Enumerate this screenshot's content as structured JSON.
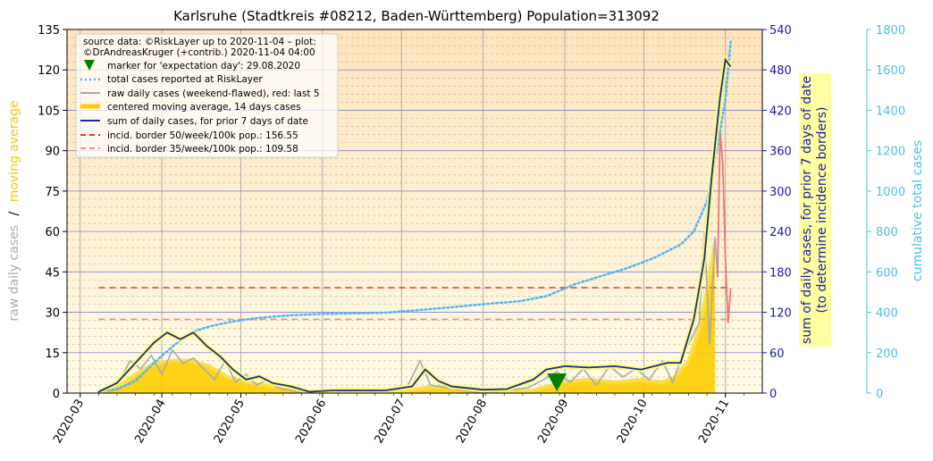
{
  "chart_data": {
    "type": "line",
    "title": "Karlsruhe (Stadtkreis #08212, Baden-Württemberg) Population=313092",
    "x_axis": {
      "type": "date",
      "range": [
        "2020-02-25",
        "2020-11-15"
      ],
      "tick_labels": [
        "2020-03",
        "2020-04",
        "2020-05",
        "2020-06",
        "2020-07",
        "2020-08",
        "2020-09",
        "2020-10",
        "2020-11"
      ],
      "ticks": [
        "2020-03-01",
        "2020-04-01",
        "2020-05-01",
        "2020-06-01",
        "2020-07-01",
        "2020-08-01",
        "2020-09-01",
        "2020-10-01",
        "2020-11-01"
      ]
    },
    "y_left": {
      "label_part1": "raw daily cases",
      "label_sep": "/",
      "label_part2": "moving average",
      "range": [
        0,
        135
      ],
      "tick_labels": [
        "0",
        "15",
        "30",
        "45",
        "60",
        "75",
        "90",
        "105",
        "120",
        "135"
      ]
    },
    "y_right1": {
      "label_line1": "sum of daily cases, for prior 7 days of date",
      "label_line2": "(to determine incidence borders)",
      "range": [
        0,
        540
      ],
      "tick_labels": [
        "0",
        "60",
        "120",
        "180",
        "240",
        "300",
        "360",
        "420",
        "480",
        "540"
      ]
    },
    "y_right2": {
      "label": "cumulative total cases",
      "range": [
        0,
        1800
      ],
      "tick_labels": [
        "0",
        "200",
        "400",
        "600",
        "800",
        "1000",
        "1200",
        "1400",
        "1600",
        "1800"
      ]
    },
    "legend": {
      "placement": "top-left",
      "source_line1": "source data: ©RiskLayer up to 2020-11-04 – plot:",
      "source_line2": "©DrAndreasKruger (+contrib.) 2020-11-04 04:00",
      "entries": [
        "marker for 'expectation day': 29.08.2020",
        "total cases reported at RiskLayer",
        "raw daily cases (weekend-flawed), red: last 5",
        "centered moving average, 14 days cases",
        "sum of daily cases, for prior 7 days of date",
        "incid. border 50/week/100k pop.: 156.55",
        "incid. border 35/week/100k pop.: 109.58"
      ]
    },
    "colors": {
      "raw": "#aaaaaa",
      "raw_last5": "#ee7777",
      "avg_fill": "#ffcc00",
      "avg_line": "#f8e04a",
      "sum7": "#1a2aa0",
      "total": "#4db8f0",
      "incid50": "#e03c2c",
      "incid35": "#f28c96",
      "marker": "#008000",
      "right1_axis": "#1a1aaa",
      "right2_axis": "#4dbcf0",
      "left_label_raw": "#aaaaaa",
      "left_label_avg": "#f2c800"
    },
    "expectation_day": "2020-08-29",
    "incidence_borders": {
      "incid50": 156.55,
      "incid35": 109.58
    },
    "series": {
      "total_cases": {
        "dates": [
          "2020-03-08",
          "2020-03-15",
          "2020-03-22",
          "2020-03-29",
          "2020-04-05",
          "2020-04-12",
          "2020-04-19",
          "2020-04-26",
          "2020-05-03",
          "2020-05-10",
          "2020-05-20",
          "2020-06-01",
          "2020-06-15",
          "2020-06-25",
          "2020-07-05",
          "2020-07-20",
          "2020-08-01",
          "2020-08-15",
          "2020-08-25",
          "2020-09-05",
          "2020-09-15",
          "2020-09-25",
          "2020-10-05",
          "2020-10-15",
          "2020-10-20",
          "2020-10-25",
          "2020-10-28",
          "2020-11-01",
          "2020-11-03"
        ],
        "values": [
          5,
          20,
          60,
          150,
          230,
          300,
          330,
          350,
          365,
          375,
          385,
          392,
          395,
          398,
          408,
          425,
          440,
          455,
          480,
          540,
          580,
          620,
          670,
          735,
          800,
          950,
          1150,
          1450,
          1740
        ]
      },
      "moving_average": {
        "dates": [
          "2020-03-08",
          "2020-03-15",
          "2020-03-22",
          "2020-03-29",
          "2020-04-05",
          "2020-04-12",
          "2020-04-19",
          "2020-04-26",
          "2020-05-03",
          "2020-05-10",
          "2020-05-17",
          "2020-05-24",
          "2020-05-31",
          "2020-06-10",
          "2020-06-20",
          "2020-06-30",
          "2020-07-10",
          "2020-07-20",
          "2020-07-31",
          "2020-08-10",
          "2020-08-20",
          "2020-08-31",
          "2020-09-10",
          "2020-09-20",
          "2020-09-30",
          "2020-10-08",
          "2020-10-13",
          "2020-10-18",
          "2020-10-22",
          "2020-10-25",
          "2020-10-28"
        ],
        "values": [
          0.5,
          2,
          7,
          11,
          12,
          12,
          10,
          6,
          4,
          3,
          2,
          1,
          0.3,
          0.3,
          0.3,
          0.5,
          2,
          2.5,
          1,
          0.5,
          1,
          4,
          5,
          4,
          5,
          4,
          6,
          12,
          24,
          38,
          56
        ]
      },
      "raw_daily": {
        "dates": [
          "2020-03-08",
          "2020-03-12",
          "2020-03-16",
          "2020-03-20",
          "2020-03-24",
          "2020-03-28",
          "2020-04-01",
          "2020-04-05",
          "2020-04-09",
          "2020-04-13",
          "2020-04-17",
          "2020-04-21",
          "2020-04-25",
          "2020-04-29",
          "2020-05-03",
          "2020-05-07",
          "2020-05-11",
          "2020-05-15",
          "2020-05-20",
          "2020-05-27",
          "2020-06-05",
          "2020-06-15",
          "2020-06-25",
          "2020-07-03",
          "2020-07-08",
          "2020-07-12",
          "2020-07-18",
          "2020-07-25",
          "2020-08-02",
          "2020-08-10",
          "2020-08-18",
          "2020-08-24",
          "2020-08-29",
          "2020-09-03",
          "2020-09-08",
          "2020-09-13",
          "2020-09-18",
          "2020-09-23",
          "2020-09-28",
          "2020-10-03",
          "2020-10-08",
          "2020-10-12",
          "2020-10-16",
          "2020-10-19",
          "2020-10-22",
          "2020-10-24",
          "2020-10-26",
          "2020-10-28",
          "2020-10-29"
        ],
        "values": [
          0,
          2,
          5,
          12,
          9,
          14,
          7,
          16,
          11,
          13,
          9,
          5,
          12,
          4,
          7,
          3,
          5,
          2,
          1,
          0,
          0,
          1,
          0,
          2,
          12,
          3,
          2,
          1,
          0,
          1,
          2,
          5,
          8,
          4,
          9,
          3,
          10,
          6,
          9,
          5,
          12,
          4,
          15,
          20,
          26,
          60,
          18,
          58,
          43
        ]
      },
      "raw_last5": {
        "dates": [
          "2020-10-30",
          "2020-10-31",
          "2020-11-01",
          "2020-11-02",
          "2020-11-03"
        ],
        "values": [
          97,
          85,
          50,
          26,
          39
        ]
      },
      "sum_7days": {
        "dates": [
          "2020-03-08",
          "2020-03-15",
          "2020-03-22",
          "2020-03-29",
          "2020-04-03",
          "2020-04-08",
          "2020-04-13",
          "2020-04-18",
          "2020-04-23",
          "2020-04-28",
          "2020-05-03",
          "2020-05-08",
          "2020-05-13",
          "2020-05-20",
          "2020-05-27",
          "2020-06-05",
          "2020-06-15",
          "2020-06-25",
          "2020-07-05",
          "2020-07-10",
          "2020-07-15",
          "2020-07-20",
          "2020-08-01",
          "2020-08-10",
          "2020-08-20",
          "2020-08-25",
          "2020-09-01",
          "2020-09-10",
          "2020-09-20",
          "2020-09-30",
          "2020-10-10",
          "2020-10-15",
          "2020-10-20",
          "2020-10-24",
          "2020-10-27",
          "2020-10-30",
          "2020-11-01",
          "2020-11-03"
        ],
        "values": [
          2,
          15,
          45,
          75,
          90,
          80,
          90,
          70,
          55,
          35,
          20,
          25,
          15,
          10,
          2,
          4,
          4,
          4,
          10,
          35,
          18,
          10,
          5,
          6,
          20,
          35,
          40,
          38,
          40,
          35,
          45,
          45,
          110,
          200,
          330,
          440,
          495,
          485
        ]
      }
    }
  }
}
